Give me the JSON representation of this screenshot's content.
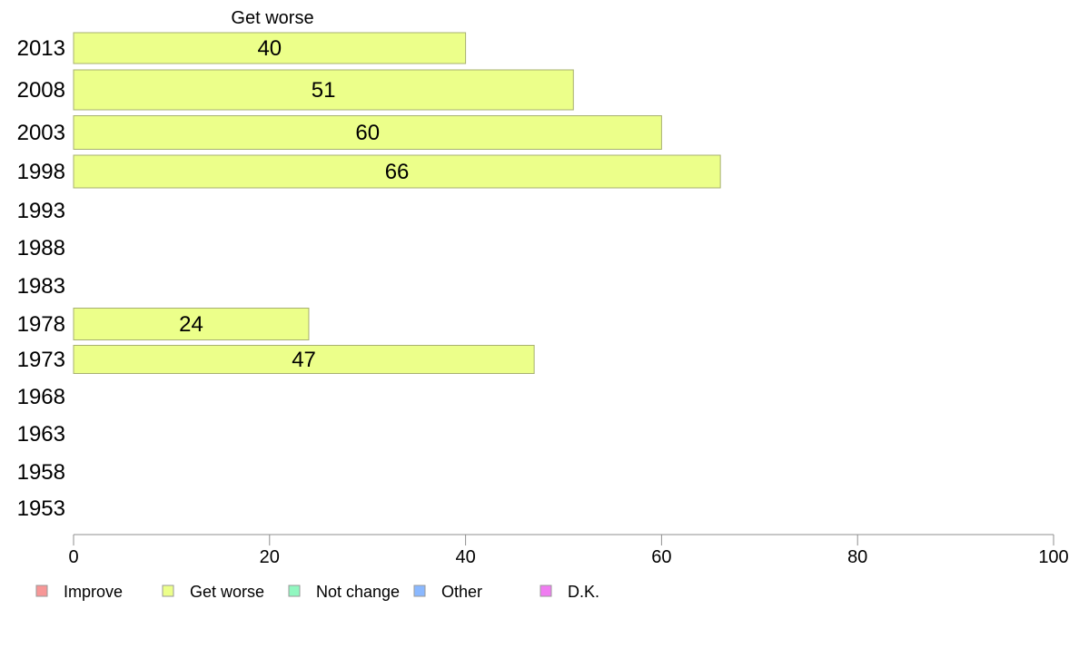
{
  "chart_data": {
    "type": "bar",
    "orientation": "horizontal",
    "series_header": "Get worse",
    "categories": [
      "2013",
      "2008",
      "2003",
      "1998",
      "1993",
      "1988",
      "1983",
      "1978",
      "1973",
      "1968",
      "1963",
      "1958",
      "1953"
    ],
    "series": [
      {
        "name": "Get worse",
        "color": "#ecff8a",
        "values": [
          40,
          51,
          60,
          66,
          null,
          null,
          null,
          24,
          47,
          null,
          null,
          null,
          null
        ]
      }
    ],
    "value_labels": [
      "40",
      "51",
      "60",
      "66",
      "",
      "",
      "",
      "24",
      "47",
      "",
      "",
      "",
      ""
    ],
    "xlim": [
      0,
      100
    ],
    "xticks": [
      0,
      20,
      40,
      60,
      80,
      100
    ],
    "grid": false,
    "legend": {
      "position": "bottom",
      "items": [
        {
          "label": "Improve",
          "color": "#f79797"
        },
        {
          "label": "Get worse",
          "color": "#ecff8a"
        },
        {
          "label": "Not change",
          "color": "#91f7c0"
        },
        {
          "label": "Other",
          "color": "#8ab8ff"
        },
        {
          "label": "D.K.",
          "color": "#f07cf1"
        }
      ]
    },
    "colors": {
      "bar_stroke": "#a7b070",
      "axis": "#8f8f8f",
      "text": "#000000"
    }
  }
}
